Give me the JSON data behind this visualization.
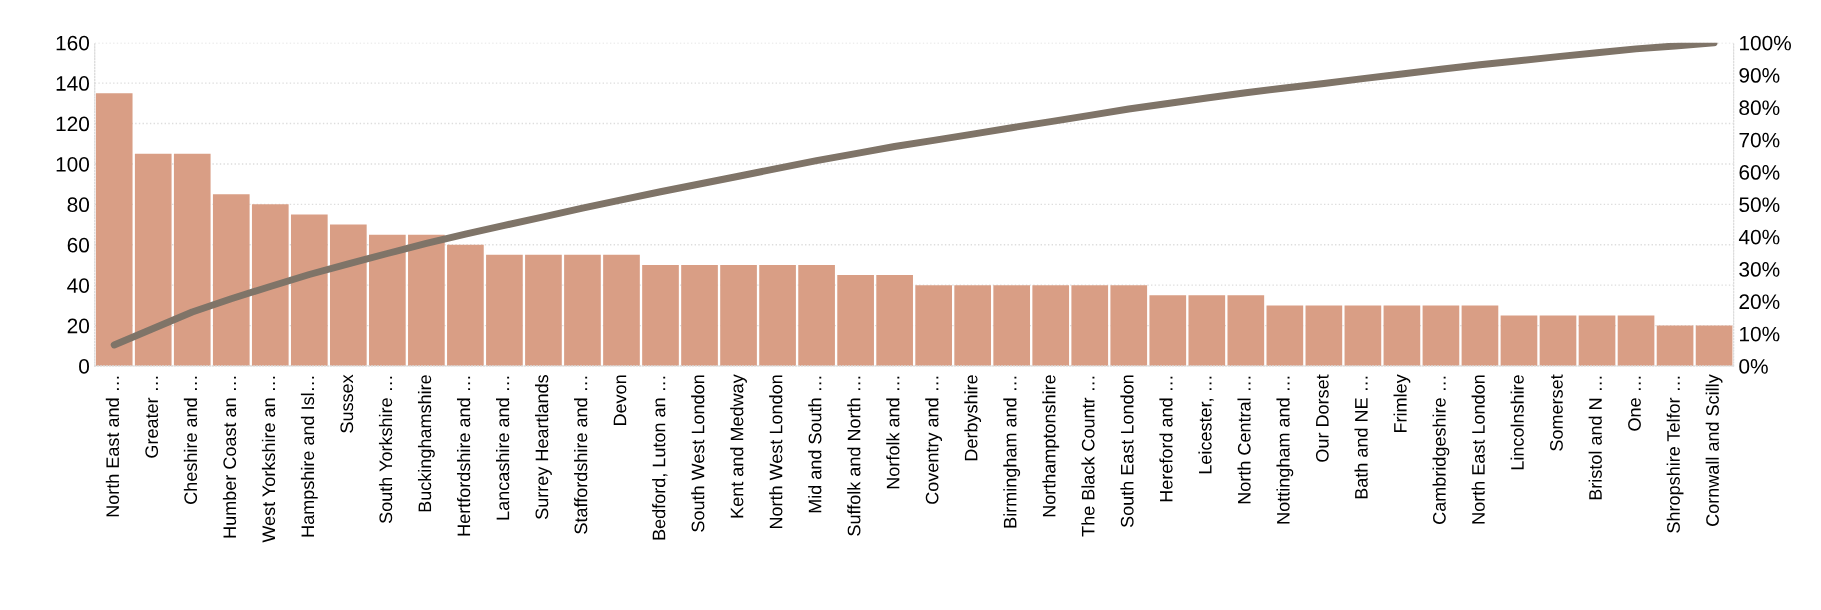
{
  "chart_data": {
    "type": "bar",
    "categories": [
      "North East and …",
      "Greater …",
      "Cheshire and …",
      "Humber Coast an …",
      "West Yorkshire an …",
      "Hampshire and Isl…",
      "Sussex",
      "South Yorkshire …",
      "Buckinghamshire",
      "Hertfordshire and …",
      "Lancashire and …",
      "Surrey Heartlands",
      "Staffordshire and …",
      "Devon",
      "Bedford, Luton an …",
      "South West London",
      "Kent and Medway",
      "North West London",
      "Mid and South …",
      "Suffolk and North …",
      "Norfolk and …",
      "Coventry and …",
      "Derbyshire",
      "Birmingham and …",
      "Northamptonshire",
      "The Black Countr …",
      "South East London",
      "Hereford and …",
      "Leicester, …",
      "North Central …",
      "Nottingham and …",
      "Our Dorset",
      "Bath and NE …",
      "Frimley",
      "Cambridgeshire …",
      "North East London",
      "Lincolnshire",
      "Somerset",
      "Bristol and N …",
      "One …",
      "Shropshire Telfor …",
      "Cornwall and Scilly"
    ],
    "series": [
      {
        "color": "#d99e85",
        "values": [
          135,
          105,
          105,
          85,
          80,
          75,
          70,
          65,
          65,
          60,
          55,
          55,
          55,
          55,
          50,
          50,
          50,
          50,
          50,
          45,
          45,
          40,
          40,
          40,
          40,
          40,
          40,
          35,
          35,
          35,
          30,
          30,
          30,
          30,
          30,
          30,
          25,
          25,
          25,
          25,
          20,
          20
        ]
      },
      {
        "type": "line",
        "axis": "y2",
        "color": "#7f7468",
        "values": [
          6.5,
          11.6,
          16.7,
          20.8,
          24.6,
          28.3,
          31.6,
          34.8,
          37.9,
          40.8,
          43.5,
          46.1,
          48.8,
          51.4,
          53.9,
          56.3,
          58.7,
          61.1,
          63.5,
          65.7,
          67.9,
          69.8,
          71.7,
          73.7,
          75.6,
          77.5,
          79.5,
          81.2,
          82.9,
          84.5,
          86.0,
          87.4,
          88.9,
          90.3,
          91.8,
          93.2,
          94.4,
          95.7,
          96.9,
          98.1,
          99.0,
          100
        ]
      }
    ],
    "ylim": [
      0,
      160
    ],
    "yticks": [
      0,
      20,
      40,
      60,
      80,
      100,
      120,
      140,
      160
    ],
    "y2lim": [
      0,
      100
    ],
    "y2ticks": [
      {
        "value": 0,
        "label": "0%"
      },
      {
        "value": 10,
        "label": "10%"
      },
      {
        "value": 20,
        "label": "20%"
      },
      {
        "value": 30,
        "label": "30%"
      },
      {
        "value": 40,
        "label": "40%"
      },
      {
        "value": 50,
        "label": "50%"
      },
      {
        "value": 60,
        "label": "60%"
      },
      {
        "value": 70,
        "label": "70%"
      },
      {
        "value": 80,
        "label": "80%"
      },
      {
        "value": 90,
        "label": "90%"
      },
      {
        "value": 100,
        "label": "100%"
      }
    ],
    "grid": "y",
    "marker": "none",
    "line_style": "solid"
  }
}
